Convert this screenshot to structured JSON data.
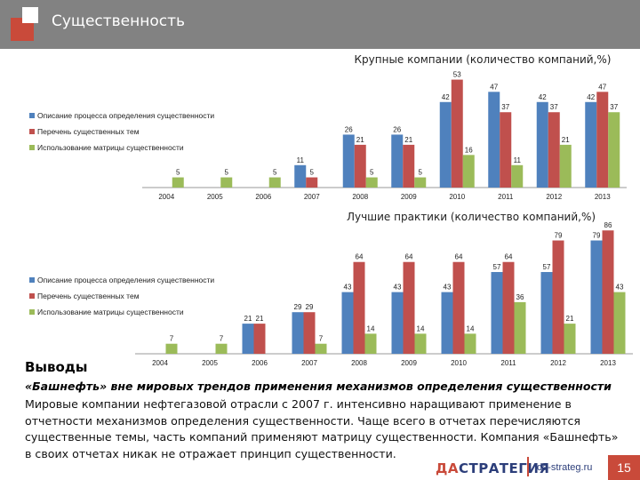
{
  "header": {
    "title": "Существенность"
  },
  "colors": {
    "series": [
      "#4f81bd",
      "#c0504d",
      "#9bbb59"
    ],
    "accent": "#c94a3a",
    "header_bg": "#828282"
  },
  "chart_data": [
    {
      "type": "bar",
      "title": "Крупные компании (количество компаний,%)",
      "categories": [
        "2004",
        "2005",
        "2006",
        "2007",
        "2008",
        "2009",
        "2010",
        "2011",
        "2012",
        "2013"
      ],
      "series": [
        {
          "name": "Описание процесса определения существенности",
          "values": [
            0,
            0,
            0,
            11,
            26,
            26,
            42,
            47,
            42,
            42
          ]
        },
        {
          "name": "Перечень существенных тем",
          "values": [
            0,
            0,
            0,
            5,
            21,
            21,
            53,
            37,
            37,
            47
          ]
        },
        {
          "name": "Использование матрицы существенности",
          "values": [
            5,
            5,
            5,
            0,
            5,
            5,
            16,
            11,
            21,
            37
          ]
        }
      ],
      "ylim": [
        0,
        55
      ],
      "legend": "left",
      "grid": false
    },
    {
      "type": "bar",
      "title": "Лучшие практики (количество компаний,%)",
      "categories": [
        "2004",
        "2005",
        "2006",
        "2007",
        "2008",
        "2009",
        "2010",
        "2011",
        "2012",
        "2013"
      ],
      "series": [
        {
          "name": "Описание процесса определения существенности",
          "values": [
            0,
            0,
            21,
            29,
            43,
            43,
            43,
            57,
            57,
            79
          ]
        },
        {
          "name": "Перечень существенных тем",
          "values": [
            0,
            0,
            21,
            29,
            64,
            64,
            64,
            64,
            79,
            86
          ]
        },
        {
          "name": "Использование матрицы существенности",
          "values": [
            7,
            7,
            0,
            7,
            14,
            14,
            14,
            36,
            21,
            43
          ]
        }
      ],
      "ylim": [
        0,
        88
      ],
      "legend": "left",
      "grid": false
    }
  ],
  "conclusions": {
    "heading": "Выводы",
    "lead": "«Башнефть» вне мировых трендов применения механизмов определения существенности",
    "lines": [
      "Мировые компании нефтегазовой отрасли с 2007 г. интенсивно наращивают применение в",
      "отчетности механизмов определения существенности. Чаще всего в отчетах перечисляются",
      "существенные темы, часть компаний применяют матрицу существенности. Компания «Башнефть»",
      "в своих отчетах никак не отражает принцип существенности."
    ]
  },
  "footer": {
    "logo_accent": "ДА",
    "logo_main": "СТРАТЕГИЯ",
    "site": "da-strateg.ru",
    "page": "15"
  }
}
